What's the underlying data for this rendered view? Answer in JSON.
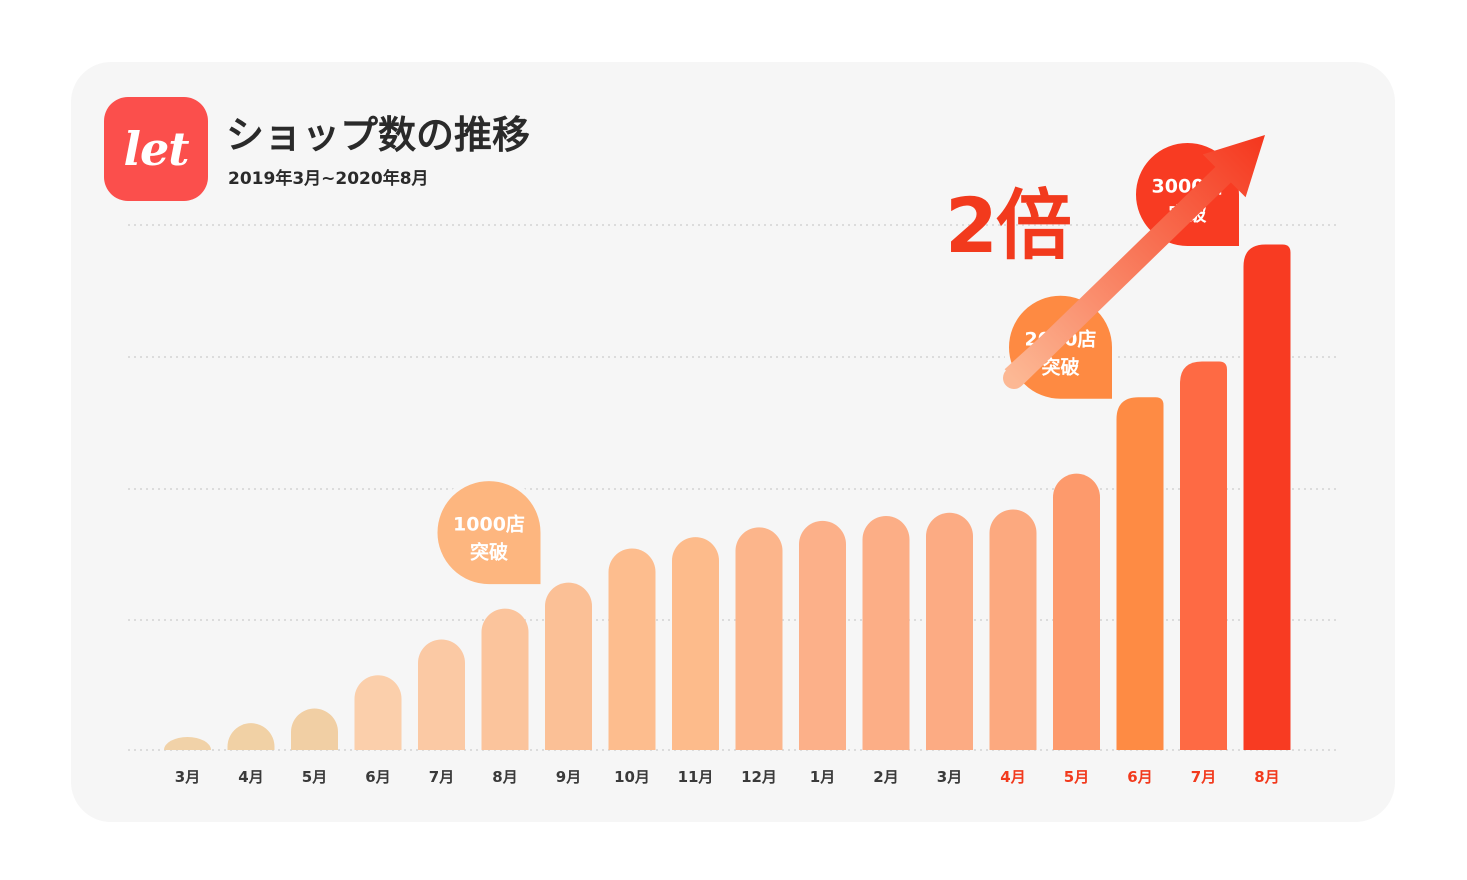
{
  "header": {
    "logo_text": "let",
    "title": "ショップ数の推移",
    "subtitle": "2019年3月~2020年8月"
  },
  "headline": "2倍",
  "colors": {
    "card_bg": "#f6f6f6",
    "brand": "#fb4f4c",
    "accent_red": "#f23a1d",
    "label_default": "#3a3a3a",
    "label_highlight": "#f23a1d"
  },
  "chart_data": {
    "type": "bar",
    "title": "ショップ数の推移",
    "subtitle": "2019年3月~2020年8月",
    "xlabel": "",
    "ylabel": "",
    "ylim": [
      0,
      3230
    ],
    "grid": true,
    "categories": [
      "3月",
      "4月",
      "5月",
      "6月",
      "7月",
      "8月",
      "9月",
      "10月",
      "11月",
      "12月",
      "1月",
      "2月",
      "3月",
      "4月",
      "5月",
      "6月",
      "7月",
      "8月"
    ],
    "values": [
      80,
      165,
      255,
      460,
      680,
      870,
      1030,
      1240,
      1310,
      1370,
      1410,
      1440,
      1460,
      1480,
      1700,
      2170,
      2390,
      3110
    ],
    "highlighted_categories_from_index": 13,
    "bar_colors": [
      "#f1d2a8",
      "#f1d1a5",
      "#f1cfa4",
      "#fbcfab",
      "#fbc9a4",
      "#fbc49c",
      "#fbc096",
      "#fdbd8e",
      "#fdbb8b",
      "#fcb58b",
      "#fcb089",
      "#fcae86",
      "#fcab83",
      "#fca97f",
      "#fd9a6c",
      "#fe8b44",
      "#fe6a44",
      "#f83b22"
    ],
    "annotations": [
      {
        "text": "1000店",
        "text2": "突破",
        "bar_index": 6,
        "color": "#fdb67f"
      },
      {
        "text": "2000店",
        "text2": "突破",
        "bar_index": 15,
        "color": "#fe8a42"
      },
      {
        "text": "3000店",
        "text2": "突破",
        "bar_index": 17,
        "color": "#f83b22"
      }
    ]
  }
}
